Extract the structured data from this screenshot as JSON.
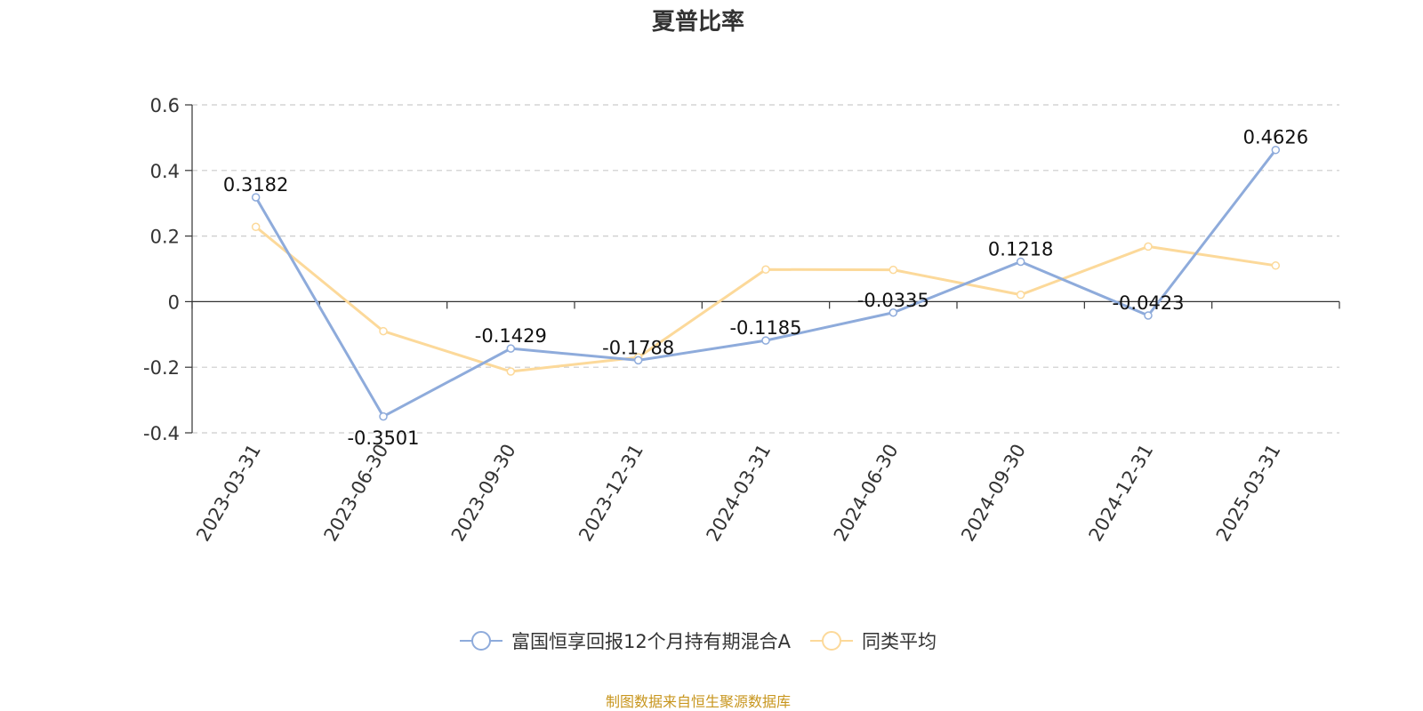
{
  "chart_data": {
    "type": "line",
    "title": "夏普比率",
    "categories": [
      "2023-03-31",
      "2023-06-30",
      "2023-09-30",
      "2023-12-31",
      "2024-03-31",
      "2024-06-30",
      "2024-09-30",
      "2024-12-31",
      "2025-03-31"
    ],
    "series": [
      {
        "name": "富国恒享回报12个月持有期混合A",
        "color": "#8eabdb",
        "values": [
          0.3182,
          -0.3501,
          -0.1429,
          -0.1788,
          -0.1185,
          -0.0335,
          0.1218,
          -0.0423,
          0.4626
        ],
        "labels": [
          "0.3182",
          "-0.3501",
          "-0.1429",
          "-0.1788",
          "-0.1185",
          "-0.0335",
          "0.1218",
          "-0.0423",
          "0.4626"
        ]
      },
      {
        "name": "同类平均",
        "color": "#fcd99a",
        "values": [
          0.228,
          -0.09,
          -0.213,
          -0.17,
          0.098,
          0.097,
          0.021,
          0.168,
          0.11
        ]
      }
    ],
    "y_ticks": [
      0.6,
      0.4,
      0.2,
      0,
      -0.2,
      -0.4
    ],
    "y_tick_labels": [
      "0.6",
      "0.4",
      "0.2",
      "0",
      "-0.2",
      "-0.4"
    ],
    "ylim": [
      -0.4,
      0.6
    ],
    "grid": true,
    "legend_position": "bottom"
  },
  "source_text": "制图数据来自恒生聚源数据库",
  "source_color": "#c8961e"
}
